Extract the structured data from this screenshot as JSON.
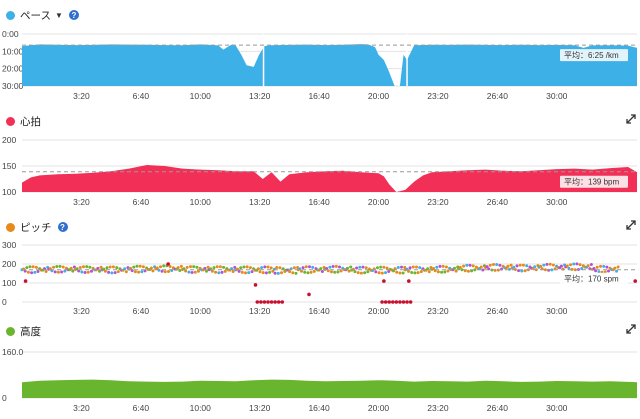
{
  "panels": [
    {
      "id": "pace",
      "label": "ペース",
      "has_caret": true,
      "has_help": true,
      "has_expand": false,
      "color": "#3db0e8",
      "chart_data": {
        "type": "area",
        "x_ticks": [
          "3:20",
          "6:40",
          "10:00",
          "13:20",
          "16:40",
          "20:00",
          "23:20",
          "26:40",
          "30:00"
        ],
        "y_ticks": [
          "0:00",
          "10:00",
          "20:00",
          "30:00"
        ],
        "ylim": [
          0,
          30
        ],
        "inverted": true,
        "average_label": "平均：6:25 /km",
        "average_value": 6.4,
        "series": [
          {
            "x": [
              0,
              0.5,
              1,
              2,
              3,
              4,
              5,
              6,
              7,
              8,
              9,
              10,
              11,
              11.3,
              11.6,
              11.8,
              12,
              12.3,
              12.6,
              13,
              13.3,
              13.6,
              14,
              15,
              16,
              17,
              18,
              19,
              19.4,
              19.8,
              20,
              20.3,
              20.6,
              20.9,
              21.2,
              21.4,
              21.6,
              22,
              23,
              24,
              25,
              26,
              27,
              28,
              29,
              30,
              30.5,
              31,
              31.5,
              32,
              33,
              34,
              34.5
            ],
            "y": [
              7,
              6.5,
              6,
              6.2,
              6.4,
              6.3,
              6,
              6.1,
              6.2,
              6.4,
              6.5,
              6,
              6.6,
              9,
              7,
              6,
              6.8,
              12,
              18,
              19,
              12,
              7,
              6.5,
              6.3,
              6.1,
              6.4,
              6.2,
              5.8,
              6,
              7.5,
              12,
              15,
              22,
              30,
              30,
              12,
              15,
              6.5,
              6.2,
              6.3,
              6.1,
              6.3,
              6.4,
              6.2,
              6.4,
              6.3,
              6.4,
              6.5,
              8,
              6.6,
              6.5,
              6.7,
              8
            ]
          }
        ]
      }
    },
    {
      "id": "heart",
      "label": "心拍",
      "has_caret": false,
      "has_help": false,
      "has_expand": true,
      "color": "#f23057",
      "chart_data": {
        "type": "area",
        "x_ticks": [
          "3:20",
          "6:40",
          "10:00",
          "13:20",
          "16:40",
          "20:00",
          "23:20",
          "26:40",
          "30:00"
        ],
        "y_ticks": [
          "100",
          "150",
          "200"
        ],
        "ylim": [
          100,
          200
        ],
        "inverted": false,
        "average_label": "平均：139 bpm",
        "average_value": 139,
        "series": [
          {
            "x": [
              0,
              0.5,
              1,
              2,
              3,
              4,
              5,
              6,
              7,
              8,
              9,
              10,
              11,
              12,
              13,
              13.5,
              14,
              14.5,
              15,
              16,
              17,
              18,
              19,
              20,
              20.3,
              20.6,
              21,
              21.5,
              22,
              22.5,
              23,
              24,
              25,
              26,
              27,
              28,
              29,
              30,
              31,
              32,
              33,
              34,
              34.5
            ],
            "y": [
              118,
              128,
              132,
              134,
              135,
              137,
              140,
              145,
              152,
              150,
              145,
              143,
              142,
              140,
              140,
              125,
              138,
              120,
              134,
              138,
              140,
              141,
              138,
              136,
              130,
              115,
              100,
              104,
              120,
              132,
              138,
              140,
              142,
              143,
              141,
              140,
              142,
              144,
              145,
              143,
              146,
              148,
              138
            ]
          }
        ]
      }
    },
    {
      "id": "cadence",
      "label": "ピッチ",
      "has_caret": false,
      "has_help": true,
      "has_expand": true,
      "color": "#e88a1a",
      "chart_data": {
        "type": "scatter",
        "x_ticks": [
          "3:20",
          "6:40",
          "10:00",
          "13:20",
          "16:40",
          "20:00",
          "23:20",
          "26:40",
          "30:00"
        ],
        "y_ticks": [
          "0",
          "100",
          "200",
          "300"
        ],
        "ylim": [
          0,
          300
        ],
        "inverted": false,
        "average_label": "平均：170 spm",
        "average_value": 170,
        "band_start": [
          0,
          1.5,
          3,
          4.5,
          6,
          7.5,
          9,
          10.5,
          12,
          14.2,
          15.5,
          17,
          18.5,
          21.5,
          23,
          24.5,
          26,
          27.5,
          29,
          30.5,
          32,
          33.5
        ],
        "band_value": [
          170,
          172,
          171,
          169,
          173,
          175,
          171,
          170,
          169,
          166,
          170,
          172,
          168,
          169,
          172,
          178,
          182,
          179,
          183,
          185,
          172,
          168
        ],
        "outliers_x": [
          0.2,
          8.2,
          13.2,
          13.4,
          13.6,
          13.8,
          14.0,
          14.2,
          14.4,
          14.6,
          13.1,
          16.1,
          20.2,
          20.4,
          20.6,
          20.8,
          21.0,
          21.2,
          21.4,
          21.6,
          21.8,
          20.3,
          21.7,
          34.4
        ],
        "outliers_y": [
          110,
          200,
          0,
          0,
          0,
          0,
          0,
          0,
          0,
          0,
          90,
          40,
          0,
          0,
          0,
          0,
          0,
          0,
          0,
          0,
          0,
          110,
          110,
          110
        ]
      }
    },
    {
      "id": "elevation",
      "label": "高度",
      "has_caret": false,
      "has_help": false,
      "has_expand": true,
      "color": "#6ab52e",
      "chart_data": {
        "type": "area",
        "x_ticks": [
          "3:20",
          "6:40",
          "10:00",
          "13:20",
          "16:40",
          "20:00",
          "23:20",
          "26:40",
          "30:00"
        ],
        "y_ticks": [
          "0",
          "160.0"
        ],
        "ylim": [
          0,
          160
        ],
        "inverted": false,
        "average_label": "",
        "average_value": null,
        "series": [
          {
            "x": [
              0,
              1,
              2,
              3,
              4,
              5,
              6,
              7,
              8,
              9,
              10,
              11,
              12,
              13,
              14,
              15,
              16,
              17,
              18,
              19,
              20,
              21,
              22,
              23,
              24,
              25,
              26,
              27,
              28,
              29,
              30,
              31,
              32,
              33,
              34,
              34.5
            ],
            "y": [
              55,
              60,
              62,
              63,
              64,
              62,
              58,
              57,
              56,
              57,
              60,
              59,
              58,
              62,
              64,
              63,
              60,
              58,
              59,
              60,
              62,
              60,
              57,
              59,
              58,
              57,
              60,
              58,
              56,
              57,
              59,
              58,
              57,
              58,
              56,
              55
            ]
          }
        ]
      }
    }
  ],
  "x_domain": [
    0,
    34.5
  ],
  "style": {
    "grid_color": "#e3e3e3",
    "avg_line_color": "#999999",
    "cadence_colors": [
      "#3db0e8",
      "#6ab52e",
      "#b64fd8",
      "#e88a1a",
      "#c8102e"
    ]
  }
}
